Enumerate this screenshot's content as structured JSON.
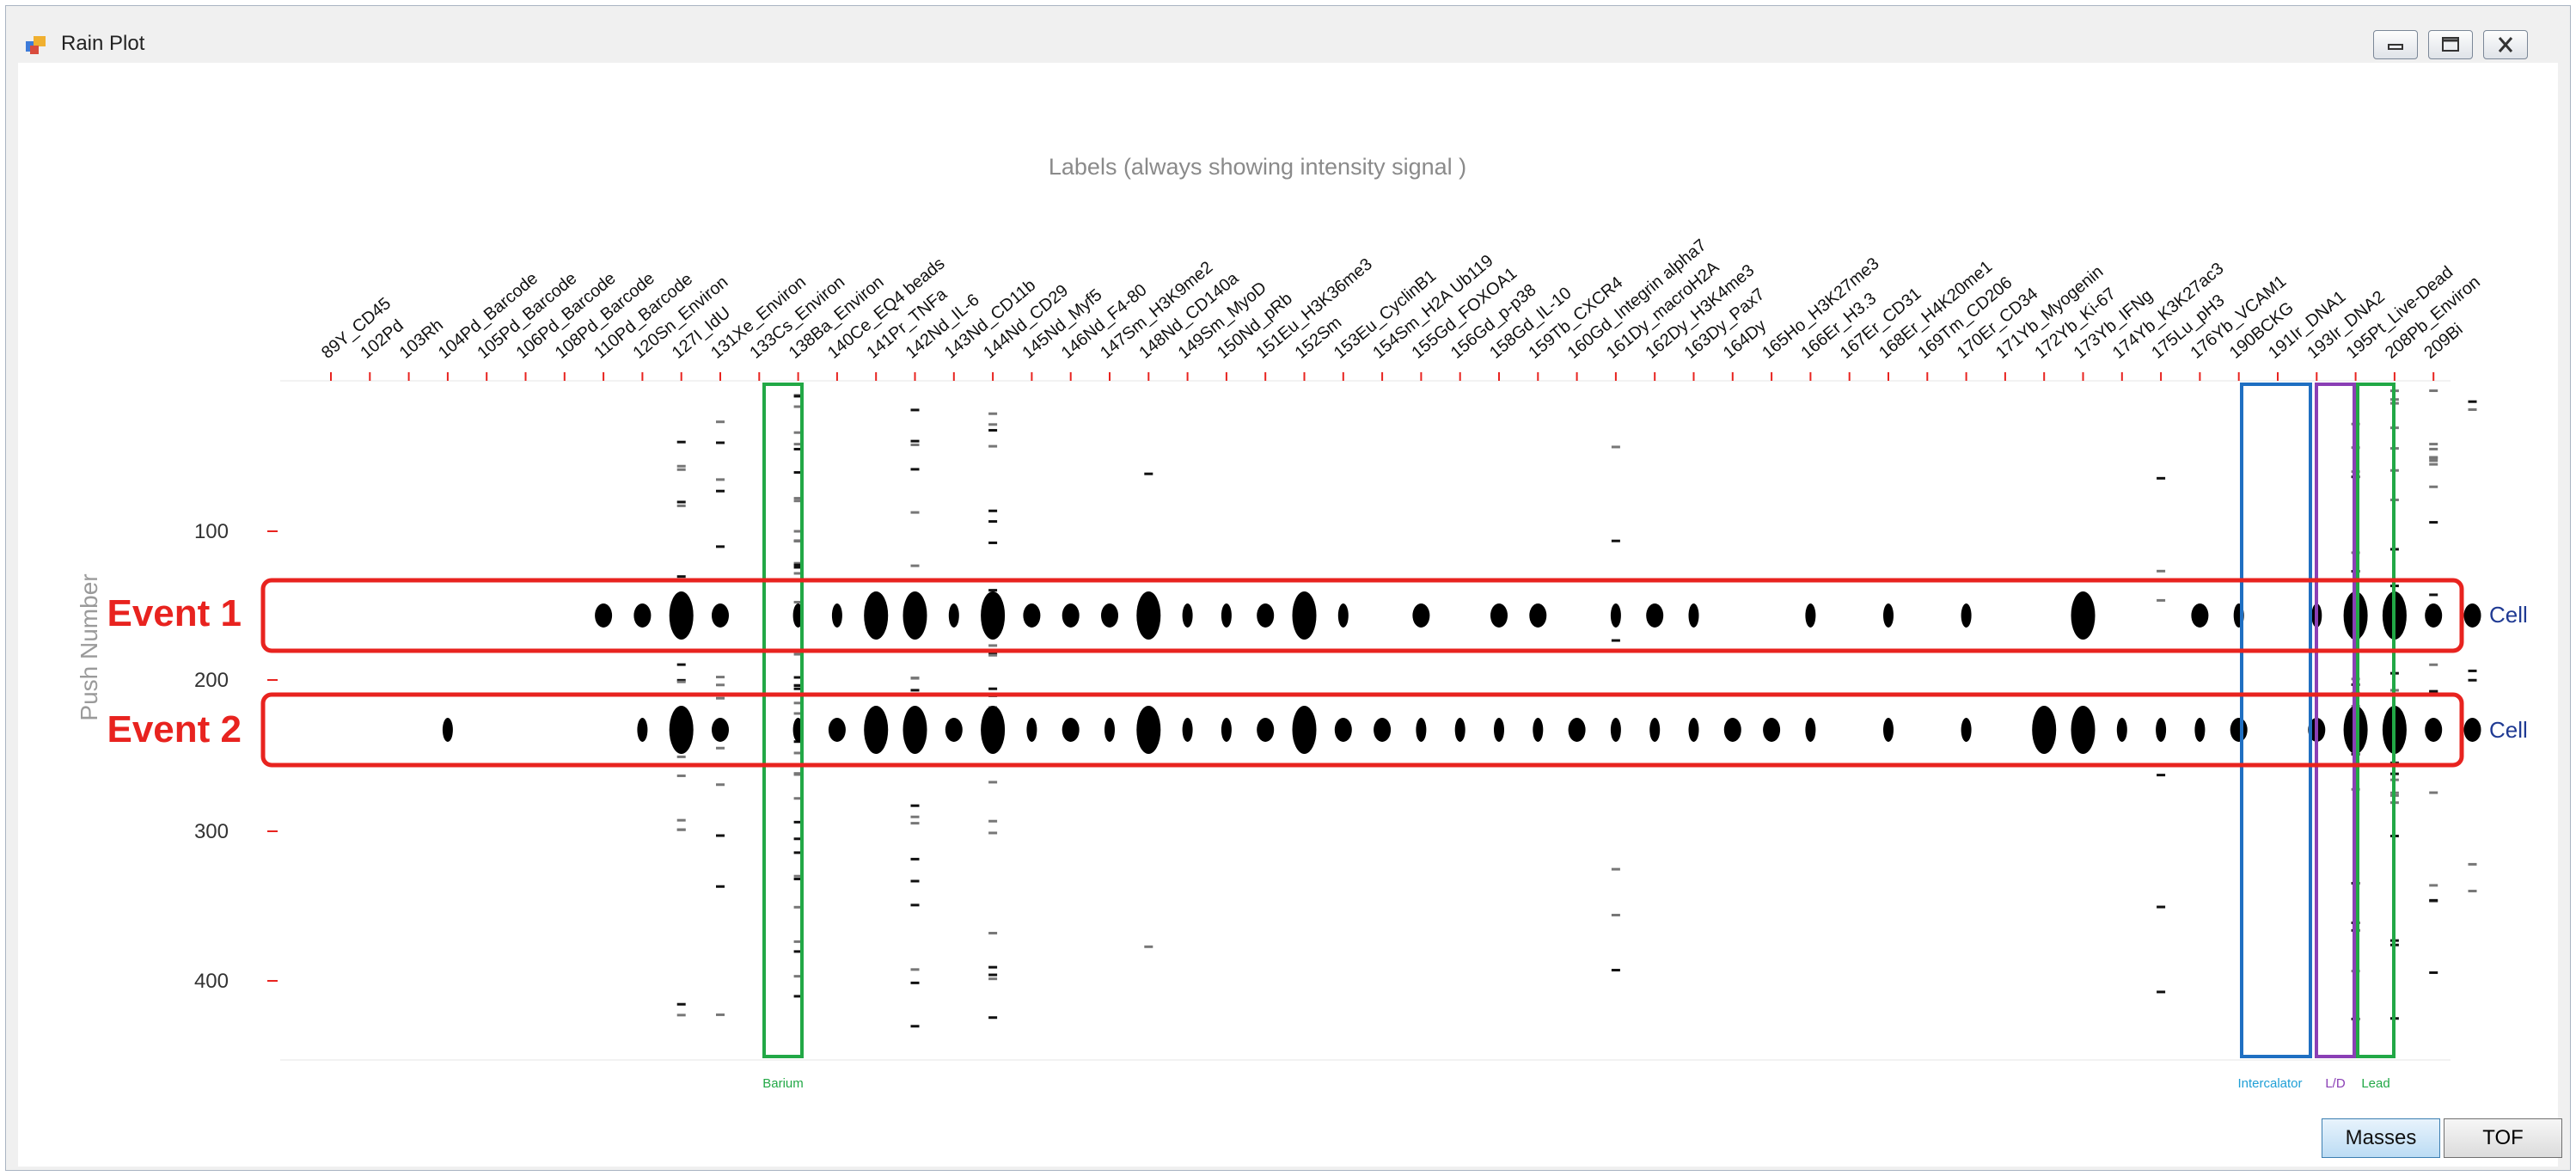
{
  "window": {
    "title": "Rain Plot"
  },
  "plot": {
    "header": "Labels (always showing intensity signal )",
    "y_axis_label": "Push Number",
    "y_ticks": [
      "100",
      "200",
      "300",
      "400"
    ],
    "channels": [
      "89Y_CD45",
      "102Pd",
      "103Rh",
      "104Pd_Barcode",
      "105Pd_Barcode",
      "106Pd_Barcode",
      "108Pd_Barcode",
      "110Pd_Barcode",
      "120Sn_Environ",
      "127I_IdU",
      "131Xe_Environ",
      "133Cs_Environ",
      "138Ba_Environ",
      "140Ce_EQ4 beads",
      "141Pr_TNFa",
      "142Nd_IL-6",
      "143Nd_CD11b",
      "144Nd_CD29",
      "145Nd_Myf5",
      "146Nd_F4-80",
      "147Sm_H3K9me2",
      "148Nd_CD140a",
      "149Sm_MyoD",
      "150Nd_pRb",
      "151Eu_H3K36me3",
      "152Sm",
      "153Eu_CyclinB1",
      "154Sm_H2A Ub119",
      "155Gd_FOXOA1",
      "156Gd_p-p38",
      "158Gd_IL-10",
      "159Tb_CXCR4",
      "160Gd_Integrin alpha7",
      "161Dy_macroH2A",
      "162Dy_H3K4me3",
      "163Dy_Pax7",
      "164Dy",
      "165Ho_H3K27me3",
      "166Er_H3.3",
      "167Er_CD31",
      "168Er_H4K20me1",
      "169Tm_CD206",
      "170Er_CD34",
      "171Yb_Myogenin",
      "172Yb_Ki-67",
      "173Yb_IFNg",
      "174Yb_K3K27ac3",
      "175Lu_pH3",
      "176Yb_VCAM1",
      "190BCKG",
      "191Ir_DNA1",
      "193Ir_DNA2",
      "195Pt_Live-Dead",
      "208Pb_Environ",
      "209Bi"
    ],
    "events": [
      {
        "label": "Event 1",
        "side_label": "Cell"
      },
      {
        "label": "Event 2",
        "side_label": "Cell"
      }
    ],
    "column_groups": [
      {
        "label": "Barium",
        "color": "#22a846"
      },
      {
        "label": "Intercalator",
        "color": "#1f6fc2"
      },
      {
        "label": "L/D",
        "color": "#8a3fb5"
      },
      {
        "label": "Lead",
        "color": "#22a846"
      }
    ],
    "colors": {
      "event_box": "#e8231f",
      "tick_red": "#e8231f",
      "header_gray": "#8a8a8a",
      "cell_label": "#1f3a93"
    }
  },
  "buttons": {
    "masses": "Masses",
    "tof": "TOF"
  }
}
